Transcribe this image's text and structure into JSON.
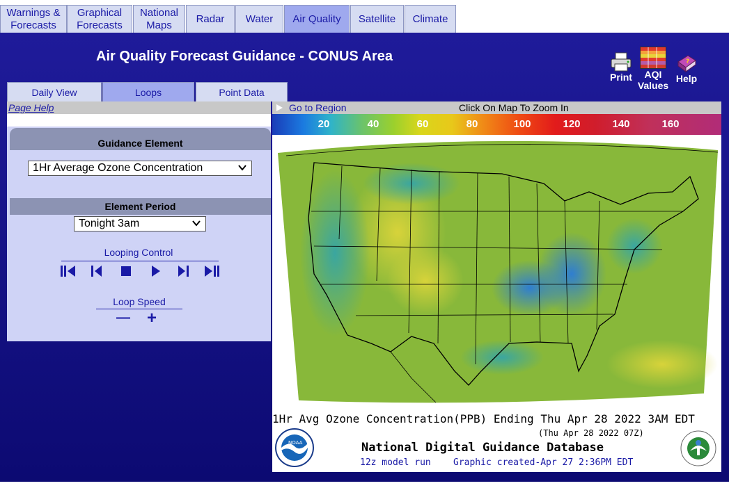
{
  "top_tabs": [
    {
      "label": "Warnings &\nForecasts",
      "active": false
    },
    {
      "label": "Graphical\nForecasts",
      "active": false
    },
    {
      "label": "National\nMaps",
      "active": false
    },
    {
      "label": "Radar",
      "active": false
    },
    {
      "label": "Water",
      "active": false
    },
    {
      "label": "Air Quality",
      "active": true
    },
    {
      "label": "Satellite",
      "active": false
    },
    {
      "label": "Climate",
      "active": false
    }
  ],
  "header": {
    "title": "Air Quality Forecast Guidance - CONUS Area",
    "print_label": "Print",
    "aqi_label": "AQI",
    "aqi_label2": "Values",
    "help_label": "Help",
    "icons": [
      "printer-icon",
      "aqi-values-icon",
      "help-book-icon"
    ]
  },
  "sub_tabs": [
    {
      "label": "Daily View",
      "active": false
    },
    {
      "label": "Loops",
      "active": true
    },
    {
      "label": "Point Data",
      "active": false
    }
  ],
  "left_panel": {
    "page_help": "Page Help",
    "guidance_heading": "Guidance Element",
    "guidance_value": "1Hr Average Ozone Concentration",
    "period_heading": "Element Period",
    "period_value": "Tonight 3am",
    "looping_label": "Looping Control",
    "loop_buttons": [
      "first-frame-icon",
      "step-back-icon",
      "stop-icon",
      "play-icon",
      "step-forward-icon",
      "last-frame-icon"
    ],
    "speed_label": "Loop Speed",
    "speed_minus": "—",
    "speed_plus": "+"
  },
  "map": {
    "goto_region": "Go to Region",
    "zoom_hint": "Click On Map To Zoom In",
    "colorbar_ticks": [
      "20",
      "40",
      "60",
      "80",
      "100",
      "120",
      "140",
      "160"
    ],
    "caption_line1": "1Hr Avg Ozone Concentration(PPB) Ending Thu Apr 28 2022  3AM EDT",
    "caption_line2": "(Thu Apr 28 2022 07Z)",
    "caption_line3": "National Digital Guidance Database",
    "caption_line4": "12z model run",
    "caption_line5": "Graphic created-Apr 27  2:36PM EDT",
    "noaa_logo": "NOAA",
    "colors": {
      "banner": "#1f1b9a",
      "tab": "#d6dcf2",
      "tab_active": "#9fa9ee",
      "panel": "#cfd3f6",
      "header_gray": "#8c93b3"
    }
  }
}
